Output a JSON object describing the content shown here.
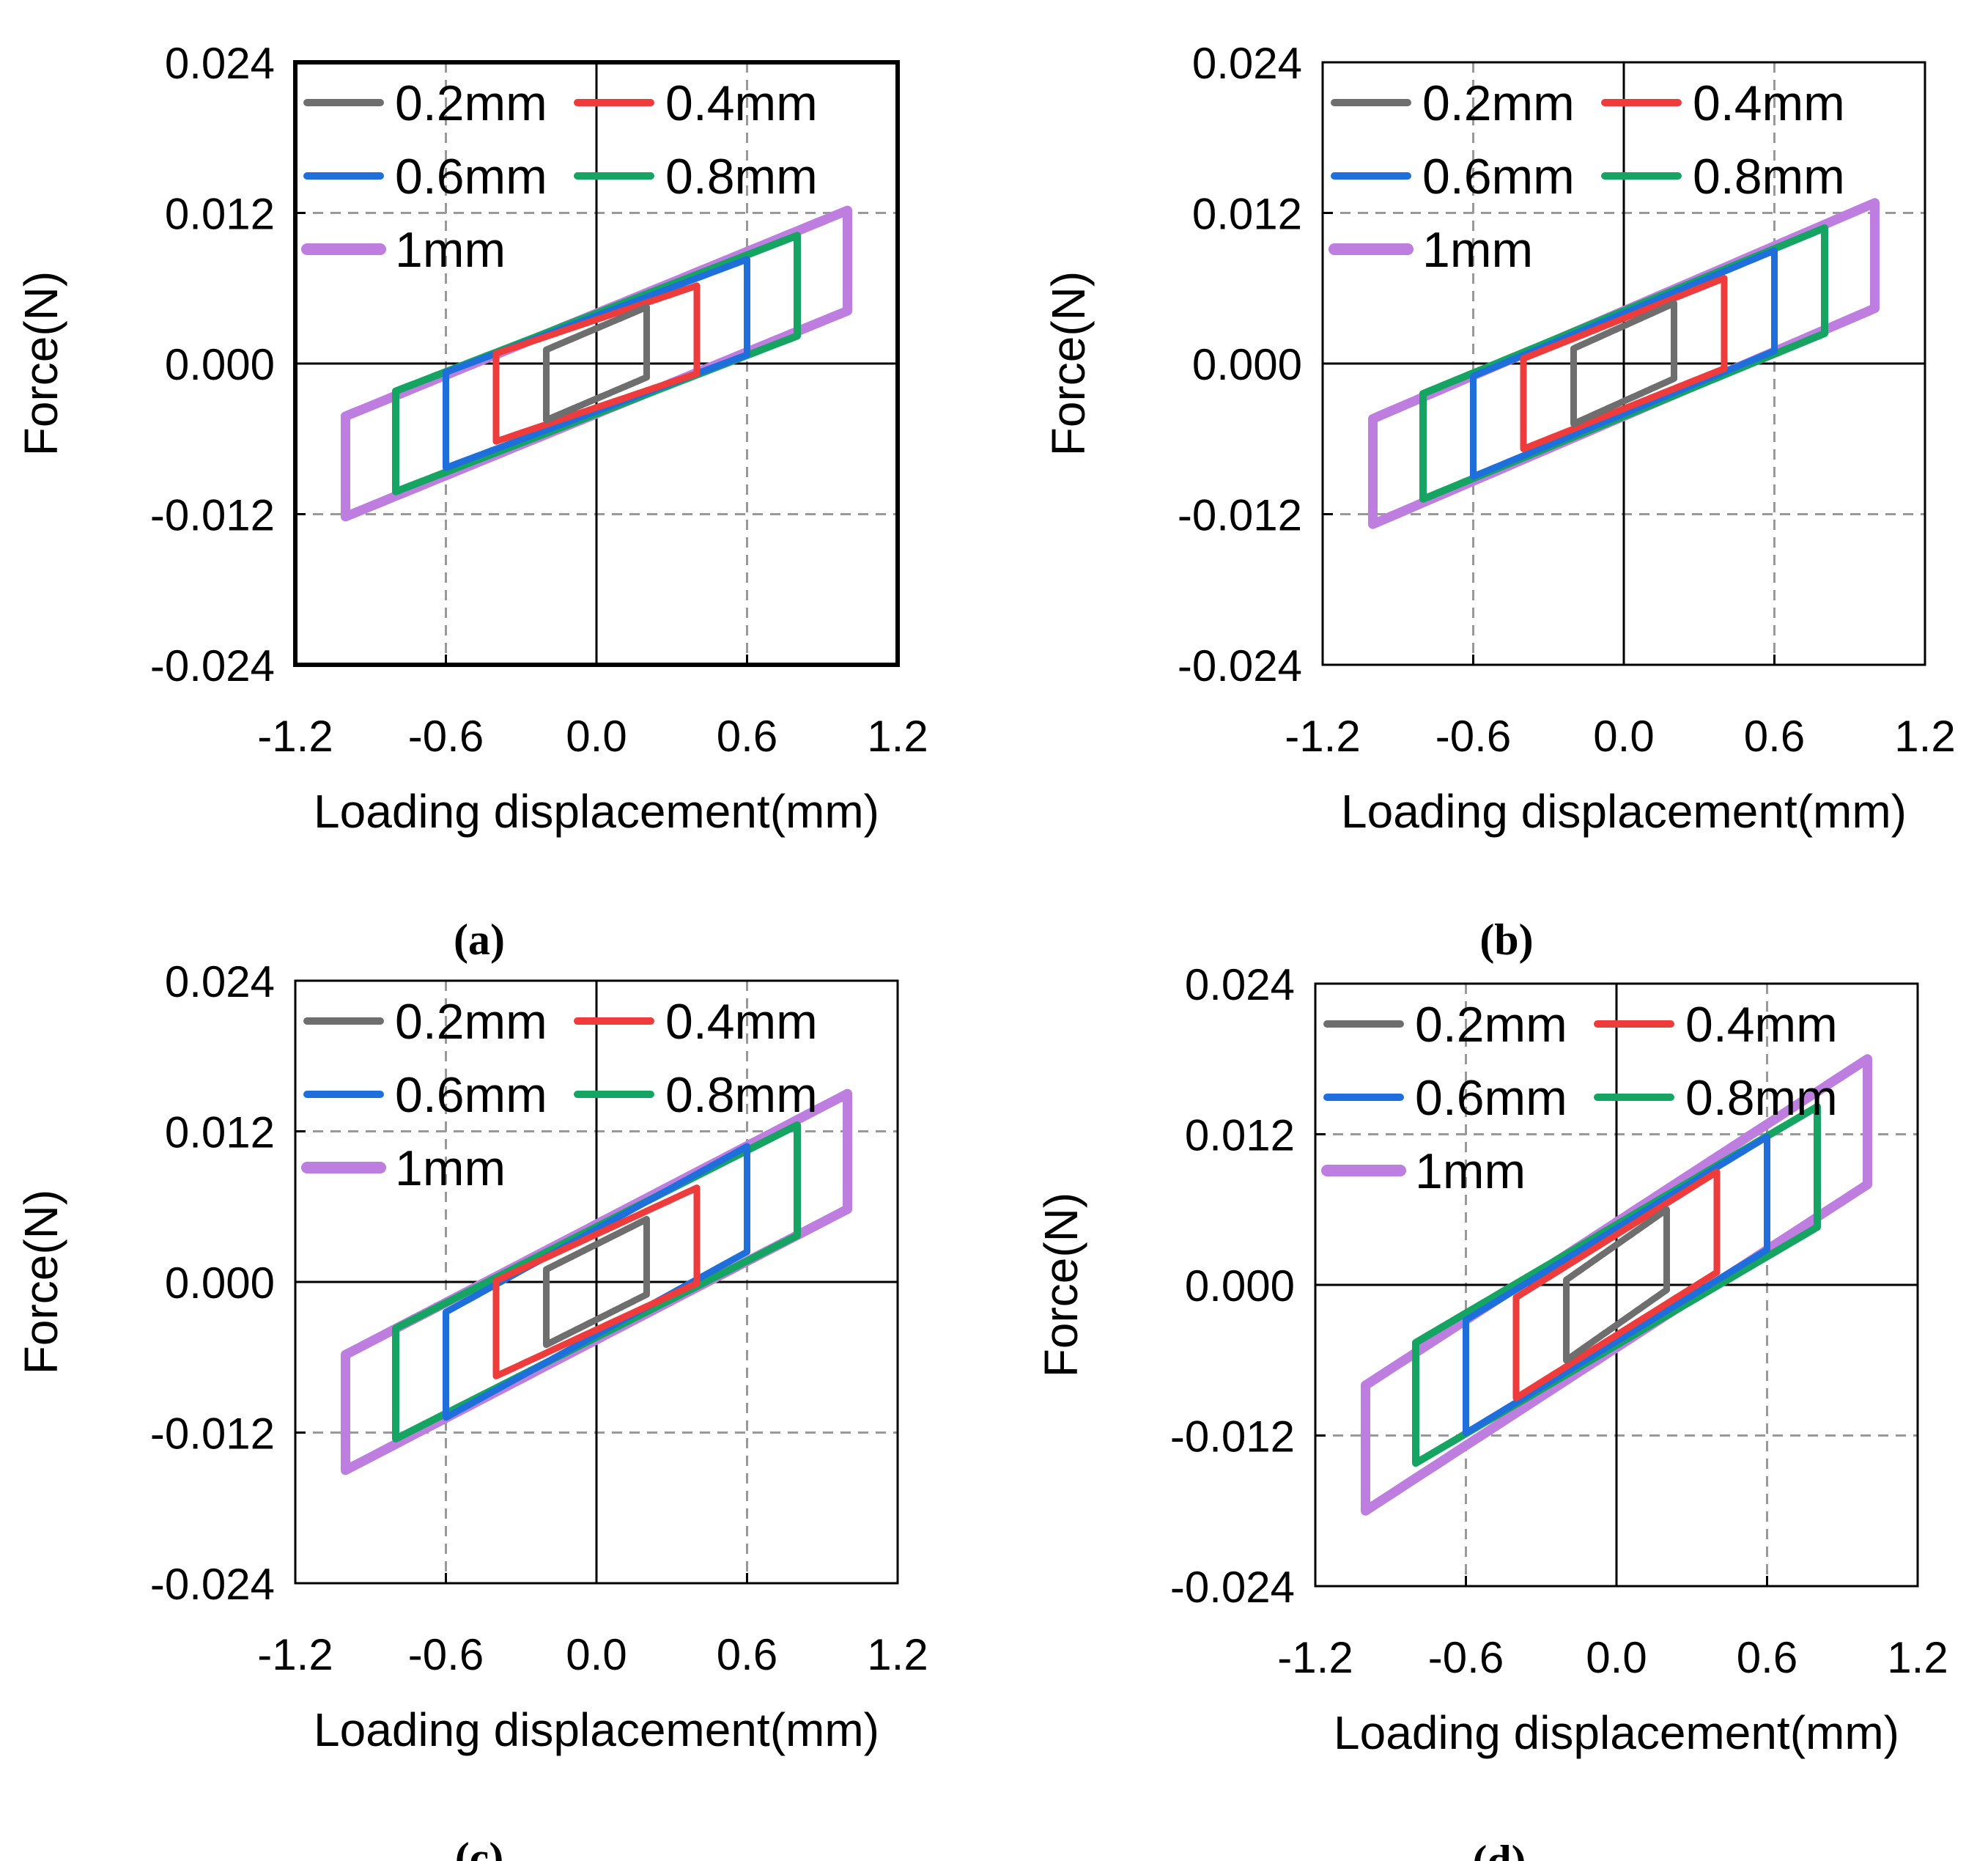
{
  "figure": {
    "colors": {
      "0.2mm": "#6e6e6e",
      "0.4mm": "#ee3b3b",
      "0.6mm": "#1e6fdc",
      "0.8mm": "#16a463",
      "1mm": "#bd7ee0",
      "axis": "#000000",
      "grid": "#999999"
    }
  },
  "chart_data": [
    {
      "panel": "(a)",
      "type": "line",
      "xlabel": "Loading displacement(mm)",
      "ylabel": "Force(N)",
      "xlim": [
        -1.2,
        1.2
      ],
      "ylim": [
        -0.024,
        0.024
      ],
      "xticks": [
        "-1.2",
        "-0.6",
        "0.0",
        "0.6",
        "1.2"
      ],
      "yticks": [
        "0.024",
        "0.012",
        "0.000",
        "-0.012",
        "-0.024"
      ],
      "grid": "dashed at ±0.6 mm and ±0.012 N",
      "legend_position": "top-left",
      "series": [
        {
          "name": "0.2mm",
          "amplitude": 0.2,
          "peak_force": 0.0045,
          "loop_half_width": 0.0028
        },
        {
          "name": "0.4mm",
          "amplitude": 0.4,
          "peak_force": 0.0062,
          "loop_half_width": 0.0035
        },
        {
          "name": "0.6mm",
          "amplitude": 0.6,
          "peak_force": 0.0083,
          "loop_half_width": 0.0038
        },
        {
          "name": "0.8mm",
          "amplitude": 0.8,
          "peak_force": 0.0102,
          "loop_half_width": 0.004
        },
        {
          "name": "1mm",
          "amplitude": 1.0,
          "peak_force": 0.0122,
          "loop_half_width": 0.004
        }
      ]
    },
    {
      "panel": "(b)",
      "type": "line",
      "xlabel": "Loading displacement(mm)",
      "ylabel": "Force(N)",
      "xlim": [
        -1.2,
        1.2
      ],
      "ylim": [
        -0.024,
        0.024
      ],
      "xticks": [
        "-1.2",
        "-0.6",
        "0.0",
        "0.6",
        "1.2"
      ],
      "yticks": [
        "0.024",
        "0.012",
        "0.000",
        "-0.012",
        "-0.024"
      ],
      "grid": "dashed at ±0.6 mm and ±0.012 N",
      "legend_position": "top-left",
      "series": [
        {
          "name": "0.2mm",
          "amplitude": 0.2,
          "peak_force": 0.0048,
          "loop_half_width": 0.003
        },
        {
          "name": "0.4mm",
          "amplitude": 0.4,
          "peak_force": 0.0068,
          "loop_half_width": 0.0036
        },
        {
          "name": "0.6mm",
          "amplitude": 0.6,
          "peak_force": 0.009,
          "loop_half_width": 0.004
        },
        {
          "name": "0.8mm",
          "amplitude": 0.8,
          "peak_force": 0.0108,
          "loop_half_width": 0.0042
        },
        {
          "name": "1mm",
          "amplitude": 1.0,
          "peak_force": 0.0128,
          "loop_half_width": 0.0042
        }
      ]
    },
    {
      "panel": "(c)",
      "type": "line",
      "xlabel": "Loading displacement(mm)",
      "ylabel": "Force(N)",
      "xlim": [
        -1.2,
        1.2
      ],
      "ylim": [
        -0.024,
        0.024
      ],
      "xticks": [
        "-1.2",
        "-0.6",
        "0.0",
        "0.6",
        "1.2"
      ],
      "yticks": [
        "0.024",
        "0.012",
        "0.000",
        "-0.012",
        "-0.024"
      ],
      "grid": "dashed at ±0.6 mm and ±0.012 N",
      "legend_position": "top-left",
      "series": [
        {
          "name": "0.2mm",
          "amplitude": 0.2,
          "peak_force": 0.005,
          "loop_half_width": 0.003
        },
        {
          "name": "0.4mm",
          "amplitude": 0.4,
          "peak_force": 0.0075,
          "loop_half_width": 0.0038
        },
        {
          "name": "0.6mm",
          "amplitude": 0.6,
          "peak_force": 0.0108,
          "loop_half_width": 0.0042
        },
        {
          "name": "0.8mm",
          "amplitude": 0.8,
          "peak_force": 0.0125,
          "loop_half_width": 0.0044
        },
        {
          "name": "1mm",
          "amplitude": 1.0,
          "peak_force": 0.015,
          "loop_half_width": 0.0046
        }
      ]
    },
    {
      "panel": "(d)",
      "type": "line",
      "xlabel": "Loading displacement(mm)",
      "ylabel": "Force(N)",
      "xlim": [
        -1.2,
        1.2
      ],
      "ylim": [
        -0.024,
        0.024
      ],
      "xticks": [
        "-1.2",
        "-0.6",
        "0.0",
        "0.6",
        "1.2"
      ],
      "yticks": [
        "0.024",
        "0.012",
        "0.000",
        "-0.012",
        "-0.024"
      ],
      "grid": "dashed at ±0.6 mm and ±0.012 N",
      "legend_position": "top-left",
      "series": [
        {
          "name": "0.2mm",
          "amplitude": 0.2,
          "peak_force": 0.006,
          "loop_half_width": 0.0032
        },
        {
          "name": "0.4mm",
          "amplitude": 0.4,
          "peak_force": 0.009,
          "loop_half_width": 0.004
        },
        {
          "name": "0.6mm",
          "amplitude": 0.6,
          "peak_force": 0.0118,
          "loop_half_width": 0.0045
        },
        {
          "name": "0.8mm",
          "amplitude": 0.8,
          "peak_force": 0.0142,
          "loop_half_width": 0.0048
        },
        {
          "name": "1mm",
          "amplitude": 1.0,
          "peak_force": 0.018,
          "loop_half_width": 0.005
        }
      ]
    }
  ]
}
